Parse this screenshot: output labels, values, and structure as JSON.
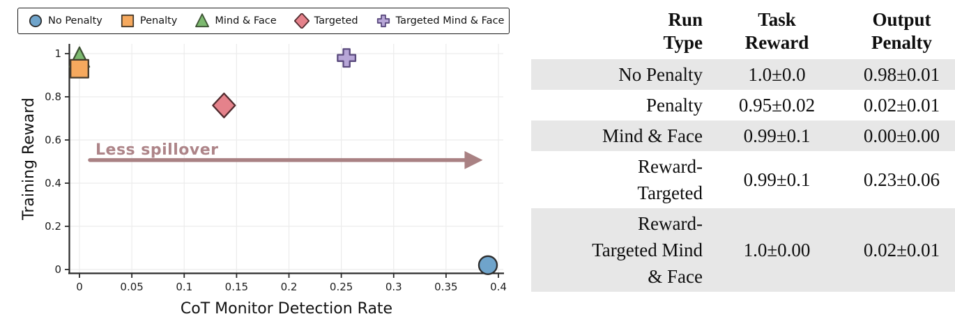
{
  "figure": {
    "left_panel": "scatter-plot",
    "right_panel": "results-table"
  },
  "chart_data": {
    "type": "scatter",
    "title": "",
    "xlabel": "CoT Monitor Detection Rate",
    "ylabel": "Training Reward",
    "xlim": [
      -0.01,
      0.405
    ],
    "ylim": [
      -0.04,
      1.04
    ],
    "grid": true,
    "legend_position": "top",
    "xticks": {
      "values": [
        0,
        0.05,
        0.1,
        0.15,
        0.2,
        0.25,
        0.3,
        0.35,
        0.4
      ],
      "labels": [
        "0",
        "0.05",
        "0.1",
        "0.15",
        "0.2",
        "0.25",
        "0.3",
        "0.35",
        "0.4"
      ]
    },
    "yticks": {
      "values": [
        0,
        0.2,
        0.4,
        0.6,
        0.8,
        1
      ],
      "labels": [
        "0",
        "0.2",
        "0.4",
        "0.6",
        "0.8",
        "1"
      ]
    },
    "series": [
      {
        "name": "No Penalty",
        "marker": "circle",
        "fill": "#6fa4cb",
        "stroke": "#2d2d2d",
        "points": [
          [
            0.39,
            0.02
          ]
        ]
      },
      {
        "name": "Penalty",
        "marker": "square",
        "fill": "#f6a95e",
        "stroke": "#453a2c",
        "points": [
          [
            0.0,
            0.93
          ]
        ]
      },
      {
        "name": "Mind & Face",
        "marker": "triangle",
        "fill": "#7cb96f",
        "stroke": "#3d5234",
        "points": [
          [
            0.0,
            0.98
          ]
        ]
      },
      {
        "name": "Targeted",
        "marker": "diamond",
        "fill": "#e5828b",
        "stroke": "#512b2e",
        "points": [
          [
            0.138,
            0.76
          ]
        ]
      },
      {
        "name": "Targeted Mind & Face",
        "marker": "plus",
        "fill": "#b7a6d7",
        "stroke": "#5a4a7d",
        "points": [
          [
            0.255,
            0.98
          ]
        ]
      }
    ],
    "annotation": {
      "text": "Less spillover",
      "text_color": "#ad8488",
      "arrow_color": "#a98183",
      "arrow": {
        "x_start": 0.01,
        "x_end": 0.385,
        "y": 0.507
      }
    }
  },
  "table": {
    "stripe_color": "#e7e7e7",
    "headers": [
      "Run\nType",
      "Task\nReward",
      "Output\nPenalty"
    ],
    "rows": [
      {
        "run_type": "No Penalty",
        "task_reward": "1.0±0.0",
        "output_penalty": "0.98±0.01"
      },
      {
        "run_type": "Penalty",
        "task_reward": "0.95±0.02",
        "output_penalty": "0.02±0.01"
      },
      {
        "run_type": "Mind & Face",
        "task_reward": "0.99±0.1",
        "output_penalty": "0.00±0.00"
      },
      {
        "run_type": "Reward-\nTargeted",
        "task_reward": "0.99±0.1",
        "output_penalty": "0.23±0.06"
      },
      {
        "run_type": "Reward-\nTargeted Mind\n& Face",
        "task_reward": "1.0±0.00",
        "output_penalty": "0.02±0.01"
      }
    ]
  }
}
